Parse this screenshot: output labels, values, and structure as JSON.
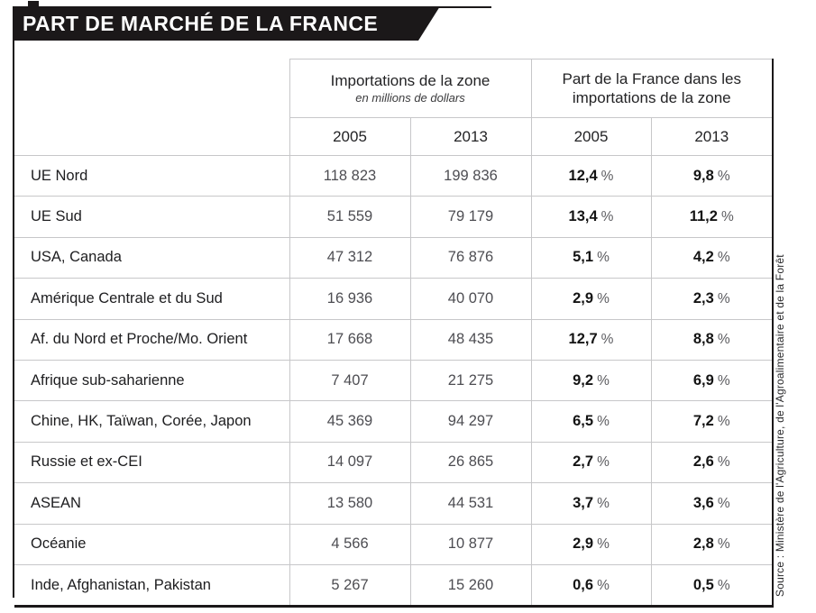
{
  "title": "PART DE MARCHÉ DE LA FRANCE",
  "source": "Source : Ministère de l'Agriculture, de l'Agroalimentaire et de la Forêt",
  "colors": {
    "banner_bg": "#1b1819",
    "banner_text": "#ffffff",
    "grid_line": "#c7c7c9",
    "zone_text": "#1d1d1f",
    "import_value_text": "#4d4d52"
  },
  "table": {
    "percent_sign": "%",
    "group_headers": [
      {
        "label": "Importations de la zone",
        "sublabel": "en millions de dollars"
      },
      {
        "label": "Part de la France dans les importations de la zone"
      }
    ],
    "year_headers": [
      "2005",
      "2013",
      "2005",
      "2013"
    ],
    "rows": [
      {
        "zone": "UE Nord",
        "imports_2005": "118 823",
        "imports_2013": "199 836",
        "share_2005": "12,4",
        "share_2013": "9,8"
      },
      {
        "zone": "UE Sud",
        "imports_2005": "51 559",
        "imports_2013": "79 179",
        "share_2005": "13,4",
        "share_2013": "11,2"
      },
      {
        "zone": "USA, Canada",
        "imports_2005": "47 312",
        "imports_2013": "76 876",
        "share_2005": "5,1",
        "share_2013": "4,2"
      },
      {
        "zone": "Amérique Centrale et du Sud",
        "imports_2005": "16 936",
        "imports_2013": "40 070",
        "share_2005": "2,9",
        "share_2013": "2,3"
      },
      {
        "zone": "Af. du Nord et Proche/Mo. Orient",
        "imports_2005": "17 668",
        "imports_2013": "48 435",
        "share_2005": "12,7",
        "share_2013": "8,8"
      },
      {
        "zone": "Afrique sub-saharienne",
        "imports_2005": "7 407",
        "imports_2013": "21 275",
        "share_2005": "9,2",
        "share_2013": "6,9"
      },
      {
        "zone": "Chine, HK, Taïwan, Corée, Japon",
        "imports_2005": "45 369",
        "imports_2013": "94 297",
        "share_2005": "6,5",
        "share_2013": "7,2"
      },
      {
        "zone": "Russie et ex-CEI",
        "imports_2005": "14 097",
        "imports_2013": "26 865",
        "share_2005": "2,7",
        "share_2013": "2,6"
      },
      {
        "zone": "ASEAN",
        "imports_2005": "13 580",
        "imports_2013": "44 531",
        "share_2005": "3,7",
        "share_2013": "3,6"
      },
      {
        "zone": "Océanie",
        "imports_2005": "4 566",
        "imports_2013": "10 877",
        "share_2005": "2,9",
        "share_2013": "2,8"
      },
      {
        "zone": "Inde, Afghanistan, Pakistan",
        "imports_2005": "5 267",
        "imports_2013": "15 260",
        "share_2005": "0,6",
        "share_2013": "0,5"
      }
    ]
  }
}
